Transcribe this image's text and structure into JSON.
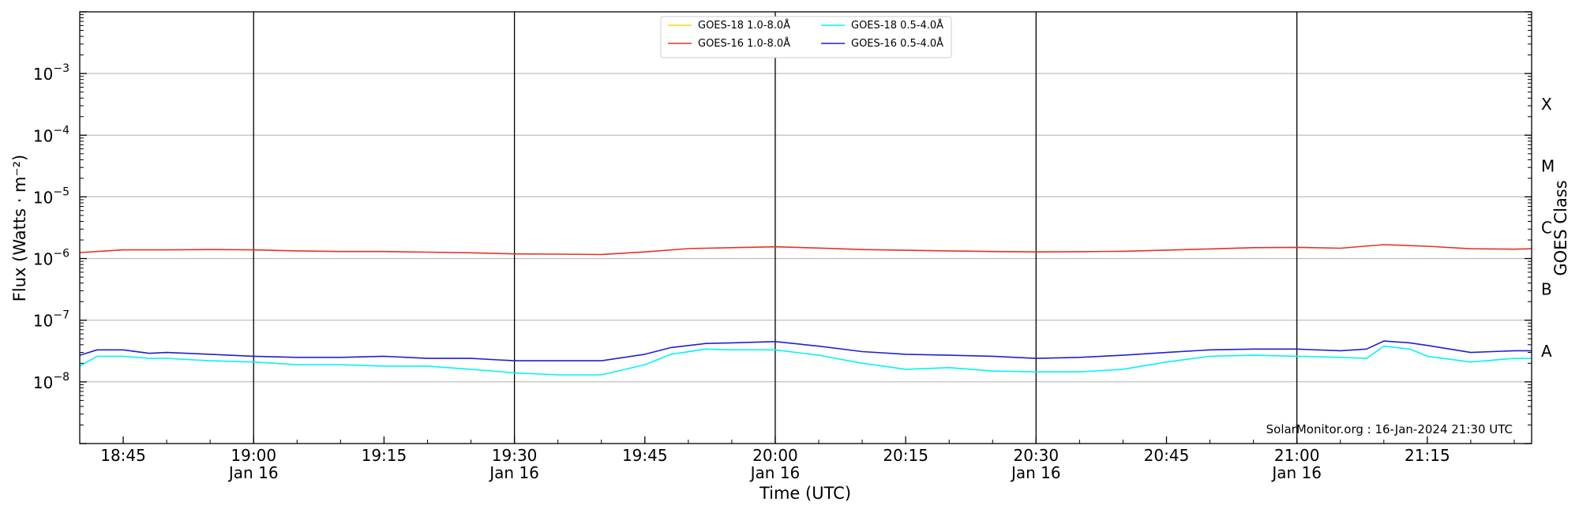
{
  "chart_data": {
    "type": "line",
    "xlabel": "Time (UTC)",
    "ylabel": "Flux (Watts · m⁻²)",
    "right_label": "GOES Class",
    "y_scale": "log",
    "ylim": [
      1e-09,
      0.01
    ],
    "xlim": [
      "2024-01-16 18:40",
      "2024-01-16 21:27"
    ],
    "grid": "horizontal at decades",
    "vertical_markers": [
      "19:00",
      "19:30",
      "20:00",
      "20:30",
      "21:00"
    ],
    "x_ticks": [
      {
        "t": "18:45",
        "label": "18:45",
        "sub": ""
      },
      {
        "t": "19:00",
        "label": "19:00",
        "sub": "Jan 16"
      },
      {
        "t": "19:15",
        "label": "19:15",
        "sub": ""
      },
      {
        "t": "19:30",
        "label": "19:30",
        "sub": "Jan 16"
      },
      {
        "t": "19:45",
        "label": "19:45",
        "sub": ""
      },
      {
        "t": "20:00",
        "label": "20:00",
        "sub": "Jan 16"
      },
      {
        "t": "20:15",
        "label": "20:15",
        "sub": ""
      },
      {
        "t": "20:30",
        "label": "20:30",
        "sub": "Jan 16"
      },
      {
        "t": "20:45",
        "label": "20:45",
        "sub": ""
      },
      {
        "t": "21:00",
        "label": "21:00",
        "sub": "Jan 16"
      },
      {
        "t": "21:15",
        "label": "21:15",
        "sub": ""
      }
    ],
    "y_ticks": [
      {
        "v": 1e-08,
        "exp": "−8"
      },
      {
        "v": 1e-07,
        "exp": "−7"
      },
      {
        "v": 1e-06,
        "exp": "−6"
      },
      {
        "v": 1e-05,
        "exp": "−5"
      },
      {
        "v": 0.0001,
        "exp": "−4"
      },
      {
        "v": 0.001,
        "exp": "−3"
      }
    ],
    "goes_classes": [
      {
        "label": "A",
        "v": 1e-07
      },
      {
        "label": "B",
        "v": 1e-06
      },
      {
        "label": "C",
        "v": 1e-05
      },
      {
        "label": "M",
        "v": 0.0001
      },
      {
        "label": "X",
        "v": 0.001
      }
    ],
    "legend": {
      "placement": "top-center",
      "entries": [
        {
          "name": "GOES-18 1.0-8.0Å",
          "color": "#ffd700"
        },
        {
          "name": "GOES-16 1.0-8.0Å",
          "color": "#e8321e"
        },
        {
          "name": "GOES-18 0.5-4.0Å",
          "color": "#00f5f5"
        },
        {
          "name": "GOES-16 0.5-4.0Å",
          "color": "#1f1fd6"
        }
      ]
    },
    "annotation": "SolarMonitor.org : 16-Jan-2024 21:30 UTC",
    "series": [
      {
        "name": "GOES-16 1.0-8.0Å",
        "color": "#e8321e",
        "x": [
          "18:40",
          "18:45",
          "18:50",
          "18:55",
          "19:00",
          "19:05",
          "19:10",
          "19:15",
          "19:20",
          "19:25",
          "19:30",
          "19:35",
          "19:40",
          "19:45",
          "19:50",
          "19:55",
          "20:00",
          "20:05",
          "20:10",
          "20:15",
          "20:20",
          "20:25",
          "20:30",
          "20:35",
          "20:40",
          "20:45",
          "20:50",
          "20:55",
          "21:00",
          "21:05",
          "21:10",
          "21:15",
          "21:20",
          "21:25",
          "21:27"
        ],
        "y": [
          1.25e-06,
          1.38e-06,
          1.38e-06,
          1.4e-06,
          1.38e-06,
          1.33e-06,
          1.3e-06,
          1.3e-06,
          1.27e-06,
          1.24e-06,
          1.19e-06,
          1.18e-06,
          1.16e-06,
          1.28e-06,
          1.45e-06,
          1.5e-06,
          1.55e-06,
          1.48e-06,
          1.4e-06,
          1.36e-06,
          1.33e-06,
          1.3e-06,
          1.28e-06,
          1.29e-06,
          1.31e-06,
          1.37e-06,
          1.43e-06,
          1.5e-06,
          1.52e-06,
          1.47e-06,
          1.68e-06,
          1.58e-06,
          1.44e-06,
          1.42e-06,
          1.44e-06
        ]
      },
      {
        "name": "GOES-16 0.5-4.0Å",
        "color": "#1f1fd6",
        "x": [
          "18:40",
          "18:42",
          "18:45",
          "18:48",
          "18:50",
          "18:55",
          "19:00",
          "19:05",
          "19:10",
          "19:15",
          "19:20",
          "19:25",
          "19:30",
          "19:35",
          "19:40",
          "19:45",
          "19:48",
          "19:52",
          "19:55",
          "20:00",
          "20:05",
          "20:10",
          "20:15",
          "20:20",
          "20:25",
          "20:30",
          "20:35",
          "20:40",
          "20:45",
          "20:50",
          "20:55",
          "21:00",
          "21:05",
          "21:08",
          "21:10",
          "21:13",
          "21:15",
          "21:20",
          "21:25",
          "21:27"
        ],
        "y": [
          2.7e-08,
          3.3e-08,
          3.3e-08,
          2.9e-08,
          3e-08,
          2.8e-08,
          2.6e-08,
          2.5e-08,
          2.5e-08,
          2.6e-08,
          2.4e-08,
          2.4e-08,
          2.2e-08,
          2.2e-08,
          2.2e-08,
          2.8e-08,
          3.6e-08,
          4.2e-08,
          4.3e-08,
          4.5e-08,
          3.8e-08,
          3.1e-08,
          2.8e-08,
          2.7e-08,
          2.6e-08,
          2.4e-08,
          2.5e-08,
          2.7e-08,
          3e-08,
          3.3e-08,
          3.4e-08,
          3.4e-08,
          3.2e-08,
          3.4e-08,
          4.6e-08,
          4.3e-08,
          3.9e-08,
          3e-08,
          3.2e-08,
          3.2e-08
        ]
      },
      {
        "name": "GOES-18 0.5-4.0Å",
        "color": "#00f5f5",
        "x": [
          "18:40",
          "18:42",
          "18:45",
          "18:48",
          "18:50",
          "18:55",
          "19:00",
          "19:05",
          "19:10",
          "19:15",
          "19:20",
          "19:25",
          "19:30",
          "19:35",
          "19:40",
          "19:45",
          "19:48",
          "19:52",
          "19:55",
          "20:00",
          "20:05",
          "20:10",
          "20:15",
          "20:20",
          "20:25",
          "20:30",
          "20:35",
          "20:40",
          "20:45",
          "20:50",
          "20:55",
          "21:00",
          "21:05",
          "21:08",
          "21:10",
          "21:13",
          "21:15",
          "21:20",
          "21:25",
          "21:27"
        ],
        "y": [
          1.8e-08,
          2.6e-08,
          2.6e-08,
          2.4e-08,
          2.4e-08,
          2.2e-08,
          2.1e-08,
          1.9e-08,
          1.9e-08,
          1.8e-08,
          1.8e-08,
          1.6e-08,
          1.4e-08,
          1.3e-08,
          1.3e-08,
          1.9e-08,
          2.8e-08,
          3.4e-08,
          3.3e-08,
          3.3e-08,
          2.7e-08,
          2e-08,
          1.6e-08,
          1.7e-08,
          1.5e-08,
          1.45e-08,
          1.45e-08,
          1.6e-08,
          2.1e-08,
          2.6e-08,
          2.7e-08,
          2.6e-08,
          2.5e-08,
          2.4e-08,
          3.8e-08,
          3.4e-08,
          2.6e-08,
          2.1e-08,
          2.4e-08,
          2.4e-08
        ]
      },
      {
        "name": "GOES-18 1.0-8.0Å",
        "color": "#ffd700",
        "x": [],
        "y": []
      }
    ]
  }
}
